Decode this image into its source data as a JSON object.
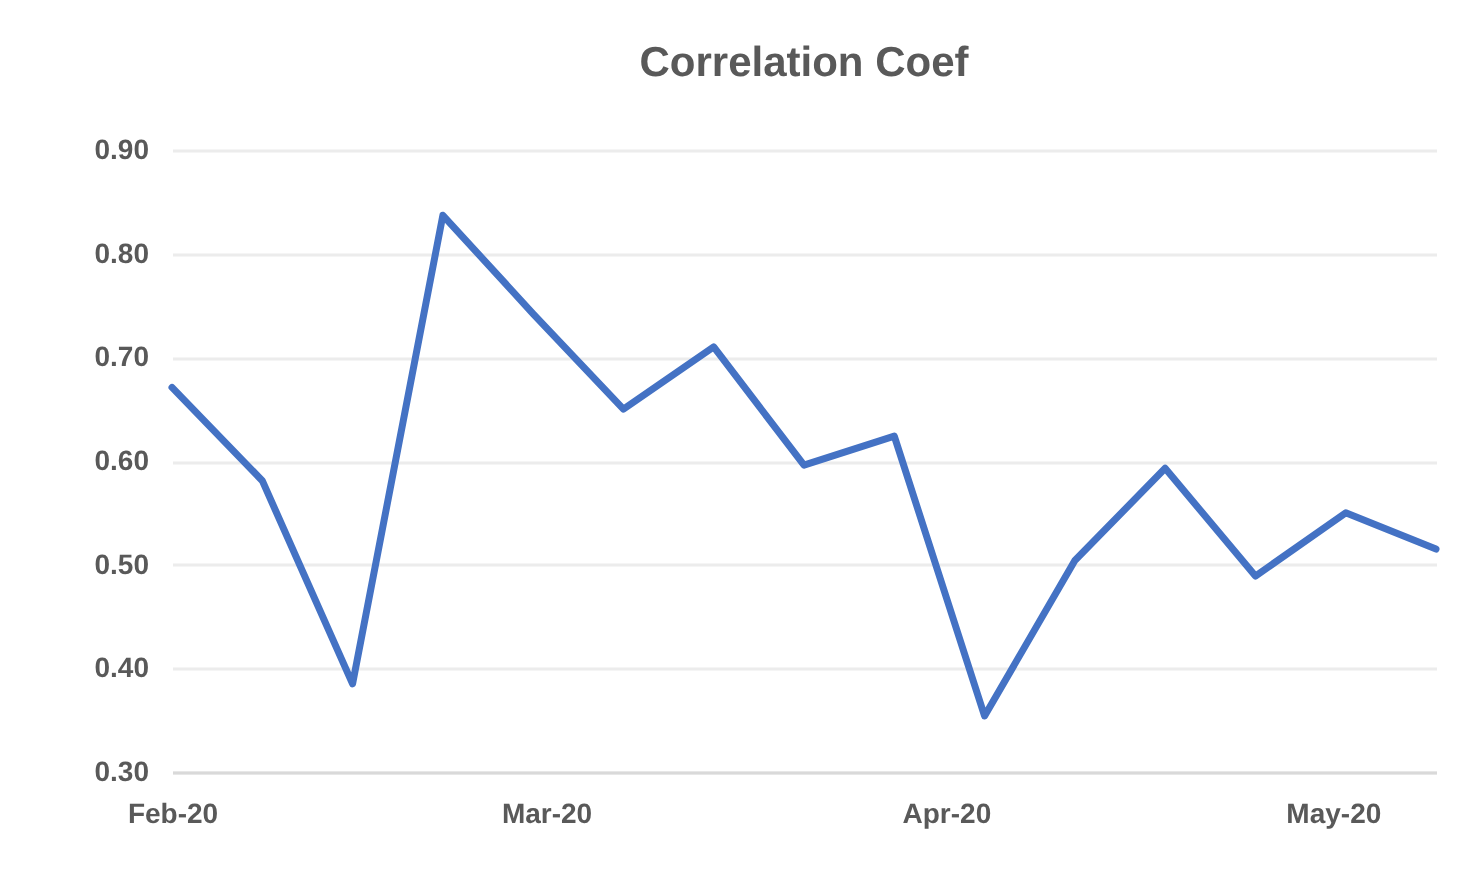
{
  "chart_data": {
    "type": "line",
    "title": "Correlation Coef",
    "x": [
      "2020-02-01",
      "2020-02-08",
      "2020-02-15",
      "2020-02-22",
      "2020-02-29",
      "2020-03-07",
      "2020-03-14",
      "2020-03-21",
      "2020-03-28",
      "2020-04-04",
      "2020-04-11",
      "2020-04-18",
      "2020-04-25",
      "2020-05-02",
      "2020-05-09"
    ],
    "series": [
      {
        "color": "#4472c4",
        "values": [
          0.671,
          0.581,
          0.385,
          0.837,
          0.742,
          0.65,
          0.71,
          0.596,
          0.624,
          0.354,
          0.504,
          0.593,
          0.489,
          0.55,
          0.515
        ]
      }
    ],
    "xlim": [
      "2020-02-01",
      "2020-05-09"
    ],
    "xticks": [
      {
        "value": "2020-02-01",
        "label": "Feb-20"
      },
      {
        "value": "2020-03-01",
        "label": "Mar-20"
      },
      {
        "value": "2020-04-01",
        "label": "Apr-20"
      },
      {
        "value": "2020-05-01",
        "label": "May-20"
      }
    ],
    "ylim": [
      0.3,
      0.9
    ],
    "yticks": [
      {
        "value": 0.3,
        "label": "0.30"
      },
      {
        "value": 0.4,
        "label": "0.40"
      },
      {
        "value": 0.5,
        "label": "0.50"
      },
      {
        "value": 0.6,
        "label": "0.60"
      },
      {
        "value": 0.7,
        "label": "0.70"
      },
      {
        "value": 0.8,
        "label": "0.80"
      },
      {
        "value": 0.9,
        "label": "0.90"
      }
    ],
    "grid": "y",
    "marker": "none",
    "line_style": "solid",
    "legend": false
  }
}
